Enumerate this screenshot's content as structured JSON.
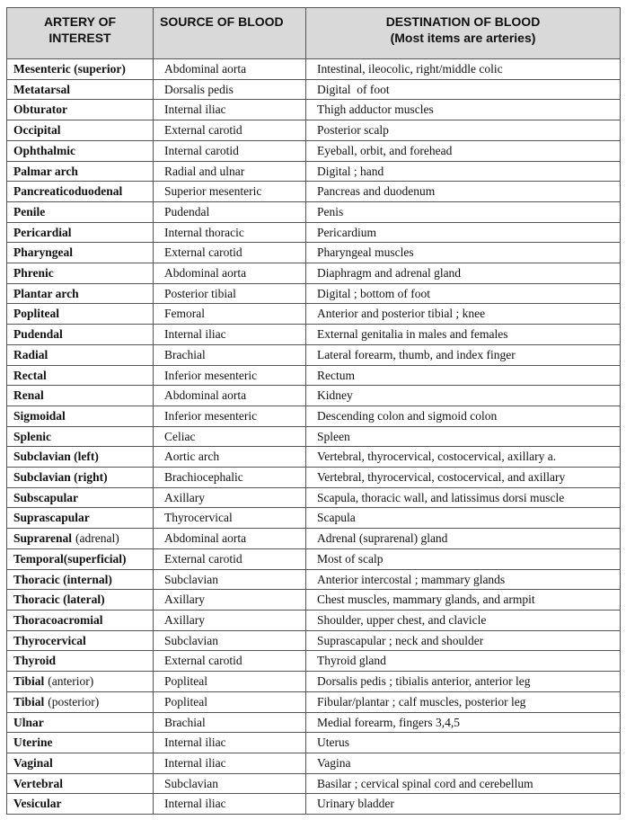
{
  "table": {
    "header": {
      "artery": "ARTERY OF INTEREST",
      "source": "SOURCE OF BLOOD",
      "destination": "DESTINATION OF BLOOD",
      "destination_note": "(Most items are arteries)"
    },
    "rows": [
      [
        "Mesenteric (superior)",
        "Abdominal aorta",
        "Intestinal, ileocolic, right/middle colic"
      ],
      [
        "Metatarsal",
        "Dorsalis pedis",
        "Digital  of foot"
      ],
      [
        "Obturator",
        "Internal iliac",
        "Thigh adductor muscles"
      ],
      [
        "Occipital",
        "External carotid",
        "Posterior scalp"
      ],
      [
        "Ophthalmic",
        "Internal carotid",
        "Eyeball, orbit, and forehead"
      ],
      [
        "Palmar arch",
        "Radial and ulnar",
        "Digital ; hand"
      ],
      [
        "Pancreaticoduodenal",
        "Superior mesenteric",
        "Pancreas and duodenum"
      ],
      [
        "Penile",
        "Pudendal",
        "Penis"
      ],
      [
        "Pericardial",
        "Internal thoracic",
        "Pericardium"
      ],
      [
        "Pharyngeal",
        "External carotid",
        "Pharyngeal muscles"
      ],
      [
        "Phrenic",
        "Abdominal aorta",
        "Diaphragm and adrenal gland"
      ],
      [
        "Plantar arch",
        "Posterior tibial",
        "Digital ; bottom of foot"
      ],
      [
        "Popliteal",
        "Femoral",
        "Anterior and posterior tibial ; knee"
      ],
      [
        "Pudendal",
        "Internal iliac",
        "External genitalia in males and females"
      ],
      [
        "Radial",
        "Brachial",
        "Lateral forearm, thumb, and index finger"
      ],
      [
        "Rectal",
        "Inferior mesenteric",
        "Rectum"
      ],
      [
        "Renal",
        "Abdominal aorta",
        "Kidney"
      ],
      [
        "Sigmoidal",
        "Inferior mesenteric",
        "Descending colon and sigmoid colon"
      ],
      [
        "Splenic",
        "Celiac",
        "Spleen"
      ],
      [
        "Subclavian (left)",
        "Aortic arch",
        "Vertebral, thyrocervical, costocervical, axillary a."
      ],
      [
        "Subclavian (right)",
        "Brachiocephalic",
        "Vertebral, thyrocervical, costocervical, and axillary"
      ],
      [
        "Subscapular",
        "Axillary",
        "Scapula, thoracic wall, and latissimus dorsi muscle"
      ],
      [
        "Suprascapular",
        "Thyrocervical",
        "Scapula"
      ],
      [
        [
          "Suprarenal",
          "(adrenal)"
        ],
        "Abdominal aorta",
        "Adrenal (suprarenal) gland"
      ],
      [
        "Temporal(superficial)",
        "External carotid",
        "Most of scalp"
      ],
      [
        "Thoracic (internal)",
        "Subclavian",
        "Anterior intercostal ; mammary glands"
      ],
      [
        "Thoracic (lateral)",
        "Axillary",
        "Chest muscles, mammary glands, and armpit"
      ],
      [
        "Thoracoacromial",
        "Axillary",
        "Shoulder, upper chest, and clavicle"
      ],
      [
        "Thyrocervical",
        "Subclavian",
        "Suprascapular ; neck and shoulder"
      ],
      [
        "Thyroid",
        "External carotid",
        "Thyroid gland"
      ],
      [
        [
          "Tibial",
          "(anterior)"
        ],
        "Popliteal",
        "Dorsalis pedis ; tibialis anterior, anterior leg"
      ],
      [
        [
          "Tibial",
          "(posterior)"
        ],
        "Popliteal",
        "Fibular/plantar ; calf muscles, posterior leg"
      ],
      [
        "Ulnar",
        "Brachial",
        "Medial forearm, fingers 3,4,5"
      ],
      [
        "Uterine",
        "Internal iliac",
        "Uterus"
      ],
      [
        "Vaginal",
        "Internal iliac",
        "Vagina"
      ],
      [
        "Vertebral",
        "Subclavian",
        "Basilar ; cervical spinal cord and cerebellum"
      ],
      [
        "Vesicular",
        "Internal iliac",
        "Urinary bladder"
      ]
    ]
  }
}
